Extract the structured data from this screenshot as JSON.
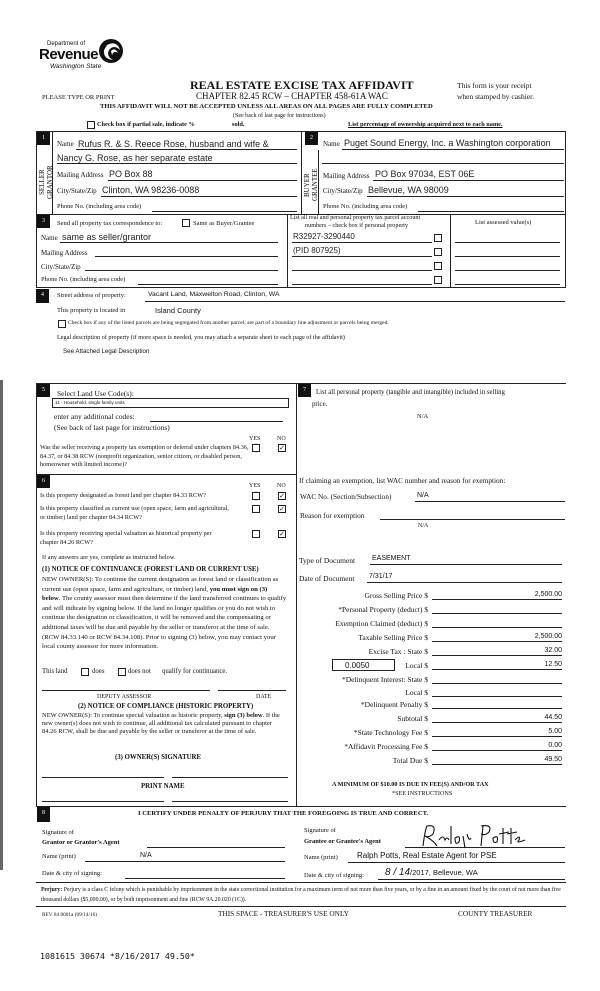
{
  "header": {
    "logo": {
      "line1": "Department of",
      "line2": "Revenue",
      "line3": "Washington State"
    },
    "title": "REAL ESTATE EXCISE TAX AFFIDAVIT",
    "chapter": "CHAPTER 82.45 RCW – CHAPTER 458-61A WAC",
    "please_type": "PLEASE TYPE OR PRINT",
    "receipt_1": "This form is your receipt",
    "receipt_2": "when stamped by cashier.",
    "warning": "THIS AFFIDAVIT WILL NOT BE ACCEPTED UNLESS ALL AREAS ON ALL PAGES ARE FULLY COMPLETED",
    "see_back": "(See back of last page for instructions)",
    "partial_sale": "Check box if partial sale, indicate %",
    "sold": "sold.",
    "ownership": "List percentage of ownership acquired next to each name."
  },
  "seller": {
    "badge": "1",
    "side_label": "SELLER GRANTOR",
    "name_label": "Name",
    "name_1": "Rufus R. & S. Reece Rose, husband and wife &",
    "name_2": "Nancy G. Rose, as her separate estate",
    "mailing_label": "Mailing Address",
    "mailing": "PO Box 88",
    "city_label": "City/State/Zip",
    "city": "Clinton, WA 98236-0088",
    "phone_label": "Phone No. (including area code)"
  },
  "buyer": {
    "badge": "2",
    "side_label": "BUYER GRANTEE",
    "name_label": "Name",
    "name": "Puget Sound Energy, Inc. a Washington corporation",
    "mailing_label": "Mailing Address",
    "mailing": "PO Box 97034, EST 06E",
    "city_label": "City/State/Zip",
    "city": "Bellevue, WA 98009",
    "phone_label": "Phone No. (including area code)"
  },
  "section3": {
    "badge": "3",
    "send_label": "Send all property tax correspondence to:",
    "same_as": "Same as Buyer/Grantee",
    "name_label": "Name",
    "name": "same as seller/grantor",
    "mailing_label": "Mailing Address",
    "city_label": "City/State/Zip",
    "phone_label": "Phone No. (including area code)",
    "parcel_header_1": "List all real and personal property tax parcel account",
    "parcel_header_2": "numbers – check box if personal property",
    "parcels": [
      "R32927-3290440",
      "(PID 807925)",
      "",
      ""
    ],
    "assessed_header": "List assessed value(s)"
  },
  "section4": {
    "badge": "4",
    "street_label": "Street address of property:",
    "street": "Vacant Land, Maxwelton Road, Clinton, WA",
    "located_label": "This property is located in",
    "county": "Island County",
    "segregated": "Check box if any of the listed parcels are being segregated from another parcel, are part of a boundary line adjustment or parcels being merged.",
    "legal_label": "Legal description of property (if more space is needed, you may attach a separate sheet to each page of the affidavit)",
    "legal": "See Attached Legal Description"
  },
  "section5": {
    "badge": "5",
    "title": "Select Land Use Code(s):",
    "code": "11 - Household, single family units",
    "additional": "enter any additional codes:",
    "see_back": "(See back of last page for instructions)",
    "yes": "YES",
    "no": "NO",
    "question": "Was the seller receiving a property tax exemption or deferral under chapters 84.36, 84.37, or 84.38 RCW (nonprofit organization, senior citizen, or disabled person, homeowner with limited income)?",
    "answer": "NO"
  },
  "section6": {
    "badge": "6",
    "yes": "YES",
    "no": "NO",
    "questions": [
      {
        "text": "Is this property designated as forest land per chapter 84.33 RCW?",
        "answer": "NO"
      },
      {
        "text": "Is this property classified as current use (open space, farm and agricultural, or timber) land per chapter 84.34 RCW?",
        "answer": "NO"
      },
      {
        "text": "Is this property receiving special valuation as historical property per chapter 84.26 RCW?",
        "answer": "NO"
      }
    ],
    "if_yes": "If any answers are yes, complete as instructed below.",
    "notice1_title": "(1) NOTICE OF CONTINUANCE (FOREST LAND OR CURRENT USE)",
    "notice1_a": "NEW OWNER(S): To continue the current designation as forest land or classification as current use (open space, farm and agriculture, or timber) land, ",
    "notice1_bold": "you must sign on (3) below",
    "notice1_b": ". The county assessor must then determine if the land transferred continues to qualify and will indicate by signing below. If the land no longer qualifies or you do not wish to continue the designation or classification, it will be removed and the compensating or additional taxes will be due and payable by the seller or transferor at the time of sale. (RCW 84.33.140 or RCW 84.34.108). Prior to signing (3) below, you may contact your local county assessor for more information.",
    "this_land": "This land",
    "does": "does",
    "does_not": "does not",
    "qualify": "qualify for continuance.",
    "deputy": "DEPUTY ASSESSOR",
    "date": "DATE",
    "notice2_title": "(2) NOTICE OF COMPLIANCE (HISTORIC PROPERTY)",
    "notice2_a": "NEW OWNER(S): To continue special valuation as historic property, ",
    "notice2_bold": "sign (3) below",
    "notice2_b": ". If the new owner(s) does not wish to continue, all additional tax calculated pursuant to chapter 84.26 RCW, shall be due and payable by the seller or transferor at the time of sale.",
    "owner_sig": "(3) OWNER(S) SIGNATURE",
    "print_name": "PRINT NAME"
  },
  "section7": {
    "badge": "7",
    "personal_1": "List all personal property (tangible and intangible) included in selling",
    "personal_2": "price.",
    "personal_value": "N/A",
    "exemption_header": "If claiming an exemption, list WAC number and reason for exemption:",
    "wac_label": "WAC No. (Section/Subsection)",
    "wac": "N/A",
    "reason_label": "Reason for exemption",
    "reason": "N/A",
    "doc_type_label": "Type of Document",
    "doc_type": "EASEMENT",
    "doc_date_label": "Date of Document",
    "doc_date": "7/31/17",
    "local_rate": "0.0050",
    "fees": [
      {
        "label": "Gross Selling Price $",
        "value": "2,500.00"
      },
      {
        "label": "*Personal Property (deduct) $",
        "value": ""
      },
      {
        "label": "Exemption Claimed (deduct) $",
        "value": ""
      },
      {
        "label": "Taxable Selling Price $",
        "value": "2,500.00"
      },
      {
        "label": "Excise Tax : State $",
        "value": "32.00"
      },
      {
        "label": "Local $",
        "value": "12.50"
      },
      {
        "label": "*Delinquent Interest: State $",
        "value": ""
      },
      {
        "label": "Local $",
        "value": ""
      },
      {
        "label": "*Delinquent Penalty $",
        "value": ""
      },
      {
        "label": "Subtotal $",
        "value": "44.50"
      },
      {
        "label": "*State Technology Fee $",
        "value": "5.00"
      },
      {
        "label": "*Affidavit Processing Fee $",
        "value": "0.00"
      },
      {
        "label": "Total Due $",
        "value": "49.50"
      }
    ],
    "minimum": "A MINIMUM OF $10.00 IS DUE IN FEE(S) AND/OR TAX",
    "see_instructions": "*SEE INSTRUCTIONS"
  },
  "section8": {
    "badge": "8",
    "certify": "I CERTIFY UNDER PENALTY OF PERJURY THAT THE FOREGOING IS TRUE AND CORRECT.",
    "sig_of": "Signature of",
    "grantor_agent": "Grantor or Grantor's Agent",
    "grantee_agent": "Grantee or Grantee's Agent",
    "grantee_signature": "Ralph Potts",
    "name_print_label": "Name (print)",
    "grantor_name": "N/A",
    "grantee_name": "Ralph Potts, Real Estate Agent for PSE",
    "date_city_label": "Date & city of signing:",
    "grantee_date_hand": "8 / 14",
    "grantee_date_rest": "/2017, Bellevue, WA"
  },
  "footer": {
    "perjury_label": "Perjury:",
    "perjury": "Perjury is a class C felony which is punishable by imprisonment in the state correctional institution for a maximum term of not more than five years, or by a fine in an amount fixed by the court of not more than five thousand dollars ($5,000.00), or by both imprisonment and fine (RCW 9A.20.020 (1C)).",
    "form_rev": "REV 84 0001a (09/14/16)",
    "treasurer_use": "THIS SPACE - TREASURER'S USE ONLY",
    "county_treasurer": "COUNTY TREASURER",
    "stamp": "1081615 30674 *8/16/2017 49.50*"
  }
}
